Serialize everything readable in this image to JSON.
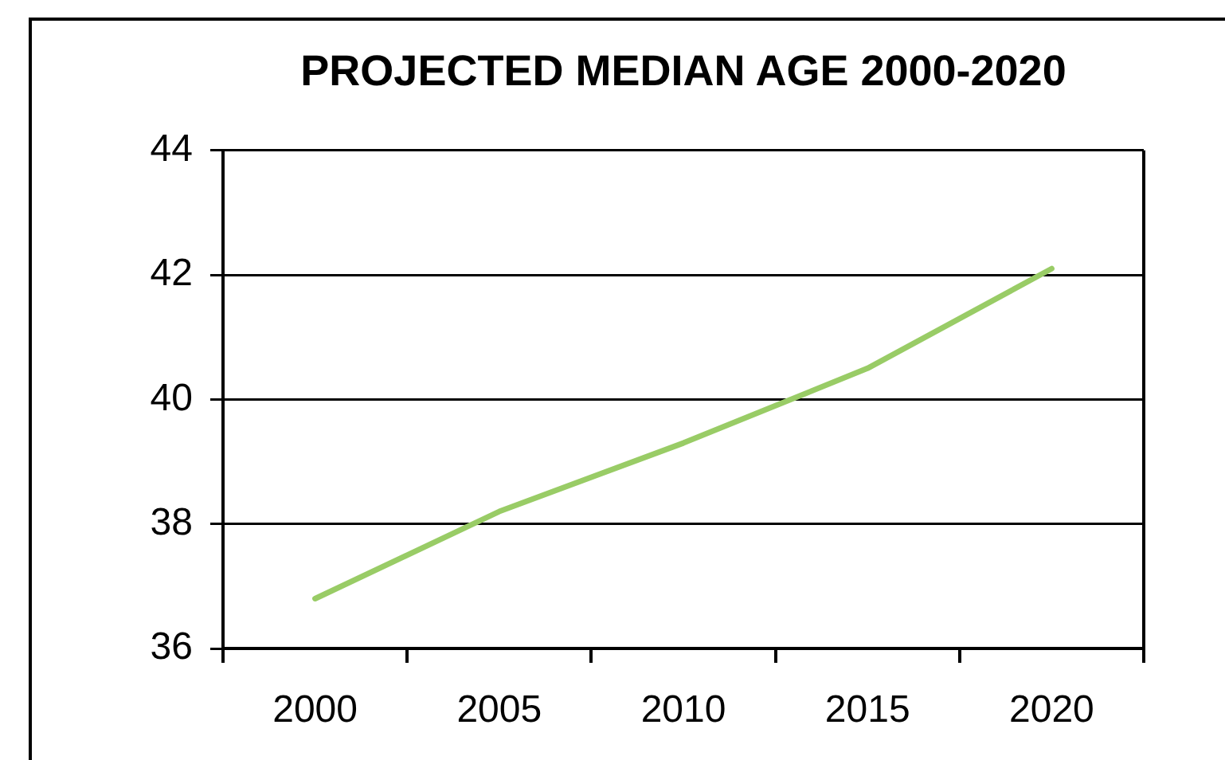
{
  "chart_data": {
    "type": "line",
    "title": "PROJECTED MEDIAN AGE 2000-2020",
    "categories": [
      "2000",
      "2005",
      "2010",
      "2015",
      "2020"
    ],
    "series": [
      {
        "color": "#99cc66",
        "values": [
          36.8,
          38.2,
          39.3,
          40.5,
          42.1
        ]
      }
    ],
    "ylim": [
      36,
      44
    ],
    "yticks": [
      36,
      38,
      40,
      42,
      44
    ],
    "grid": "y",
    "marker": "none",
    "line_style": "solid"
  }
}
